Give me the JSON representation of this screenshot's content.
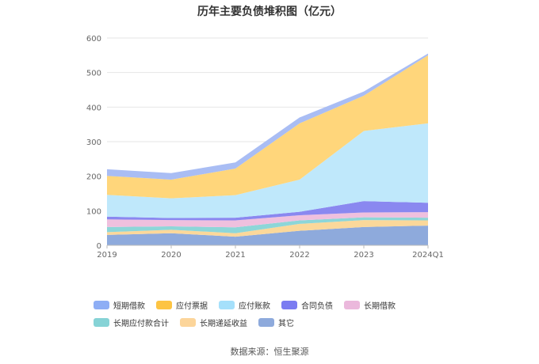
{
  "chart_data": {
    "type": "area",
    "stacked": true,
    "title": "历年主要负债堆积图（亿元）",
    "x": [
      "2019",
      "2020",
      "2021",
      "2022",
      "2023",
      "2024Q1"
    ],
    "y_ticks": [
      "0",
      "100",
      "200",
      "300",
      "400",
      "500",
      "600"
    ],
    "ylim": [
      0,
      600
    ],
    "grid": true,
    "legend_position": "bottom",
    "series": [
      {
        "name": "其它",
        "color": "#8eaadc",
        "values": [
          30,
          35,
          25,
          42,
          53,
          57
        ]
      },
      {
        "name": "长期递延收益",
        "color": "#fbd89a",
        "values": [
          8,
          10,
          10,
          20,
          20,
          15
        ]
      },
      {
        "name": "长期应付款合计",
        "color": "#8dd6d8",
        "values": [
          15,
          10,
          17,
          10,
          8,
          8
        ]
      },
      {
        "name": "长期借款",
        "color": "#efc0de",
        "values": [
          22,
          18,
          20,
          15,
          14,
          16
        ]
      },
      {
        "name": "合同负债",
        "color": "#8a88f0",
        "values": [
          8,
          6,
          8,
          10,
          33,
          27
        ]
      },
      {
        "name": "应付账款",
        "color": "#bfe8fb",
        "values": [
          63,
          57,
          65,
          93,
          203,
          230
        ]
      },
      {
        "name": "应付票据",
        "color": "#ffd67b",
        "values": [
          55,
          54,
          77,
          163,
          102,
          197
        ]
      },
      {
        "name": "短期借款",
        "color": "#a9bdf4",
        "values": [
          19,
          19,
          18,
          17,
          12,
          5
        ]
      }
    ]
  },
  "legend": {
    "items": [
      {
        "label": "短期借款",
        "color": "#8eaef5"
      },
      {
        "label": "应付票据",
        "color": "#fdc443"
      },
      {
        "label": "应付账款",
        "color": "#a5e0fb"
      },
      {
        "label": "合同负债",
        "color": "#7b7cf1"
      },
      {
        "label": "长期借款",
        "color": "#ebb8dc"
      },
      {
        "label": "长期应付款合计",
        "color": "#86d3d6"
      },
      {
        "label": "长期递延收益",
        "color": "#fcd59a"
      },
      {
        "label": "其它",
        "color": "#8eaadc"
      }
    ]
  },
  "source": "数据来源：恒生聚源"
}
